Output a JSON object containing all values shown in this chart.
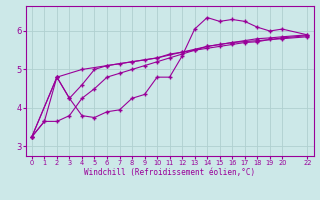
{
  "title": "",
  "xlabel": "Windchill (Refroidissement éolien,°C)",
  "ylabel": "",
  "bg_color": "#cce8e8",
  "line_color": "#990099",
  "marker": "+",
  "xlim": [
    -0.5,
    22.5
  ],
  "ylim": [
    2.75,
    6.65
  ],
  "xticks": [
    0,
    1,
    2,
    3,
    4,
    5,
    6,
    7,
    8,
    9,
    10,
    11,
    12,
    13,
    14,
    15,
    16,
    17,
    18,
    19,
    20,
    22
  ],
  "yticks": [
    3,
    4,
    5,
    6
  ],
  "grid_color": "#b0d0d0",
  "lines": [
    [
      [
        0,
        3.25
      ],
      [
        1,
        3.65
      ],
      [
        2,
        4.8
      ],
      [
        3,
        4.25
      ],
      [
        4,
        3.8
      ],
      [
        5,
        3.75
      ],
      [
        6,
        3.9
      ],
      [
        7,
        3.95
      ],
      [
        8,
        4.25
      ],
      [
        9,
        4.35
      ],
      [
        10,
        4.8
      ],
      [
        11,
        4.8
      ],
      [
        12,
        5.35
      ],
      [
        13,
        6.05
      ],
      [
        14,
        6.35
      ],
      [
        15,
        6.25
      ],
      [
        16,
        6.3
      ],
      [
        17,
        6.25
      ],
      [
        18,
        6.1
      ],
      [
        19,
        6.0
      ],
      [
        20,
        6.05
      ],
      [
        22,
        5.9
      ]
    ],
    [
      [
        0,
        3.25
      ],
      [
        2,
        4.8
      ],
      [
        3,
        4.25
      ],
      [
        4,
        4.6
      ],
      [
        5,
        5.0
      ],
      [
        6,
        5.1
      ],
      [
        7,
        5.15
      ],
      [
        8,
        5.2
      ],
      [
        9,
        5.25
      ],
      [
        10,
        5.3
      ],
      [
        11,
        5.4
      ],
      [
        12,
        5.45
      ],
      [
        13,
        5.5
      ],
      [
        14,
        5.55
      ],
      [
        15,
        5.6
      ],
      [
        16,
        5.65
      ],
      [
        17,
        5.7
      ],
      [
        18,
        5.72
      ],
      [
        19,
        5.78
      ],
      [
        20,
        5.82
      ],
      [
        22,
        5.88
      ]
    ],
    [
      [
        0,
        3.25
      ],
      [
        2,
        4.8
      ],
      [
        4,
        5.0
      ],
      [
        6,
        5.1
      ],
      [
        8,
        5.2
      ],
      [
        10,
        5.3
      ],
      [
        12,
        5.45
      ],
      [
        14,
        5.6
      ],
      [
        16,
        5.7
      ],
      [
        18,
        5.75
      ],
      [
        20,
        5.8
      ],
      [
        22,
        5.85
      ]
    ],
    [
      [
        0,
        3.25
      ],
      [
        1,
        3.65
      ],
      [
        2,
        3.65
      ],
      [
        3,
        3.8
      ],
      [
        4,
        4.25
      ],
      [
        5,
        4.5
      ],
      [
        6,
        4.8
      ],
      [
        7,
        4.9
      ],
      [
        8,
        5.0
      ],
      [
        9,
        5.1
      ],
      [
        10,
        5.2
      ],
      [
        11,
        5.3
      ],
      [
        12,
        5.4
      ],
      [
        13,
        5.5
      ],
      [
        14,
        5.6
      ],
      [
        15,
        5.65
      ],
      [
        16,
        5.7
      ],
      [
        17,
        5.75
      ],
      [
        18,
        5.8
      ],
      [
        19,
        5.82
      ],
      [
        20,
        5.85
      ],
      [
        22,
        5.9
      ]
    ]
  ]
}
